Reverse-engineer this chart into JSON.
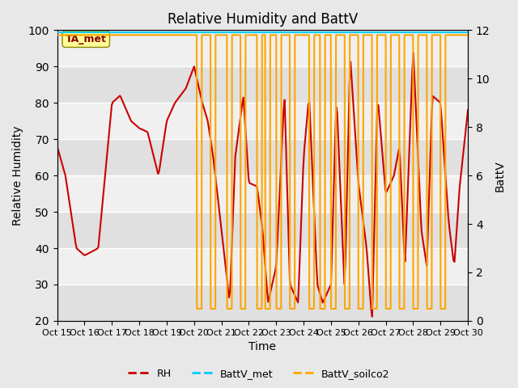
{
  "title": "Relative Humidity and BattV",
  "xlabel": "Time",
  "ylabel_left": "Relative Humidity",
  "ylabel_right": "BattV",
  "annotation_text": "TA_met",
  "annotation_box_color": "#ffff99",
  "annotation_text_color": "#8b0000",
  "bg_color": "#e8e8e8",
  "plot_bg_color": "#f0f0f0",
  "x_tick_labels": [
    "Oct 15",
    "Oct 16",
    "Oct 17",
    "Oct 18",
    "Oct 19",
    "Oct 20",
    "Oct 21",
    "Oct 22",
    "Oct 23",
    "Oct 24",
    "Oct 25",
    "Oct 26",
    "Oct 27",
    "Oct 28",
    "Oct 29",
    "Oct 30"
  ],
  "ylim_left": [
    20,
    100
  ],
  "ylim_right": [
    0,
    12
  ],
  "rh_color": "#cc0000",
  "battv_met_color": "#00ccff",
  "battv_soilco2_color": "#ffa500",
  "grid_color": "#ffffff",
  "rh_linewidth": 1.5,
  "battv_linewidth": 1.5,
  "legend_dash": true
}
